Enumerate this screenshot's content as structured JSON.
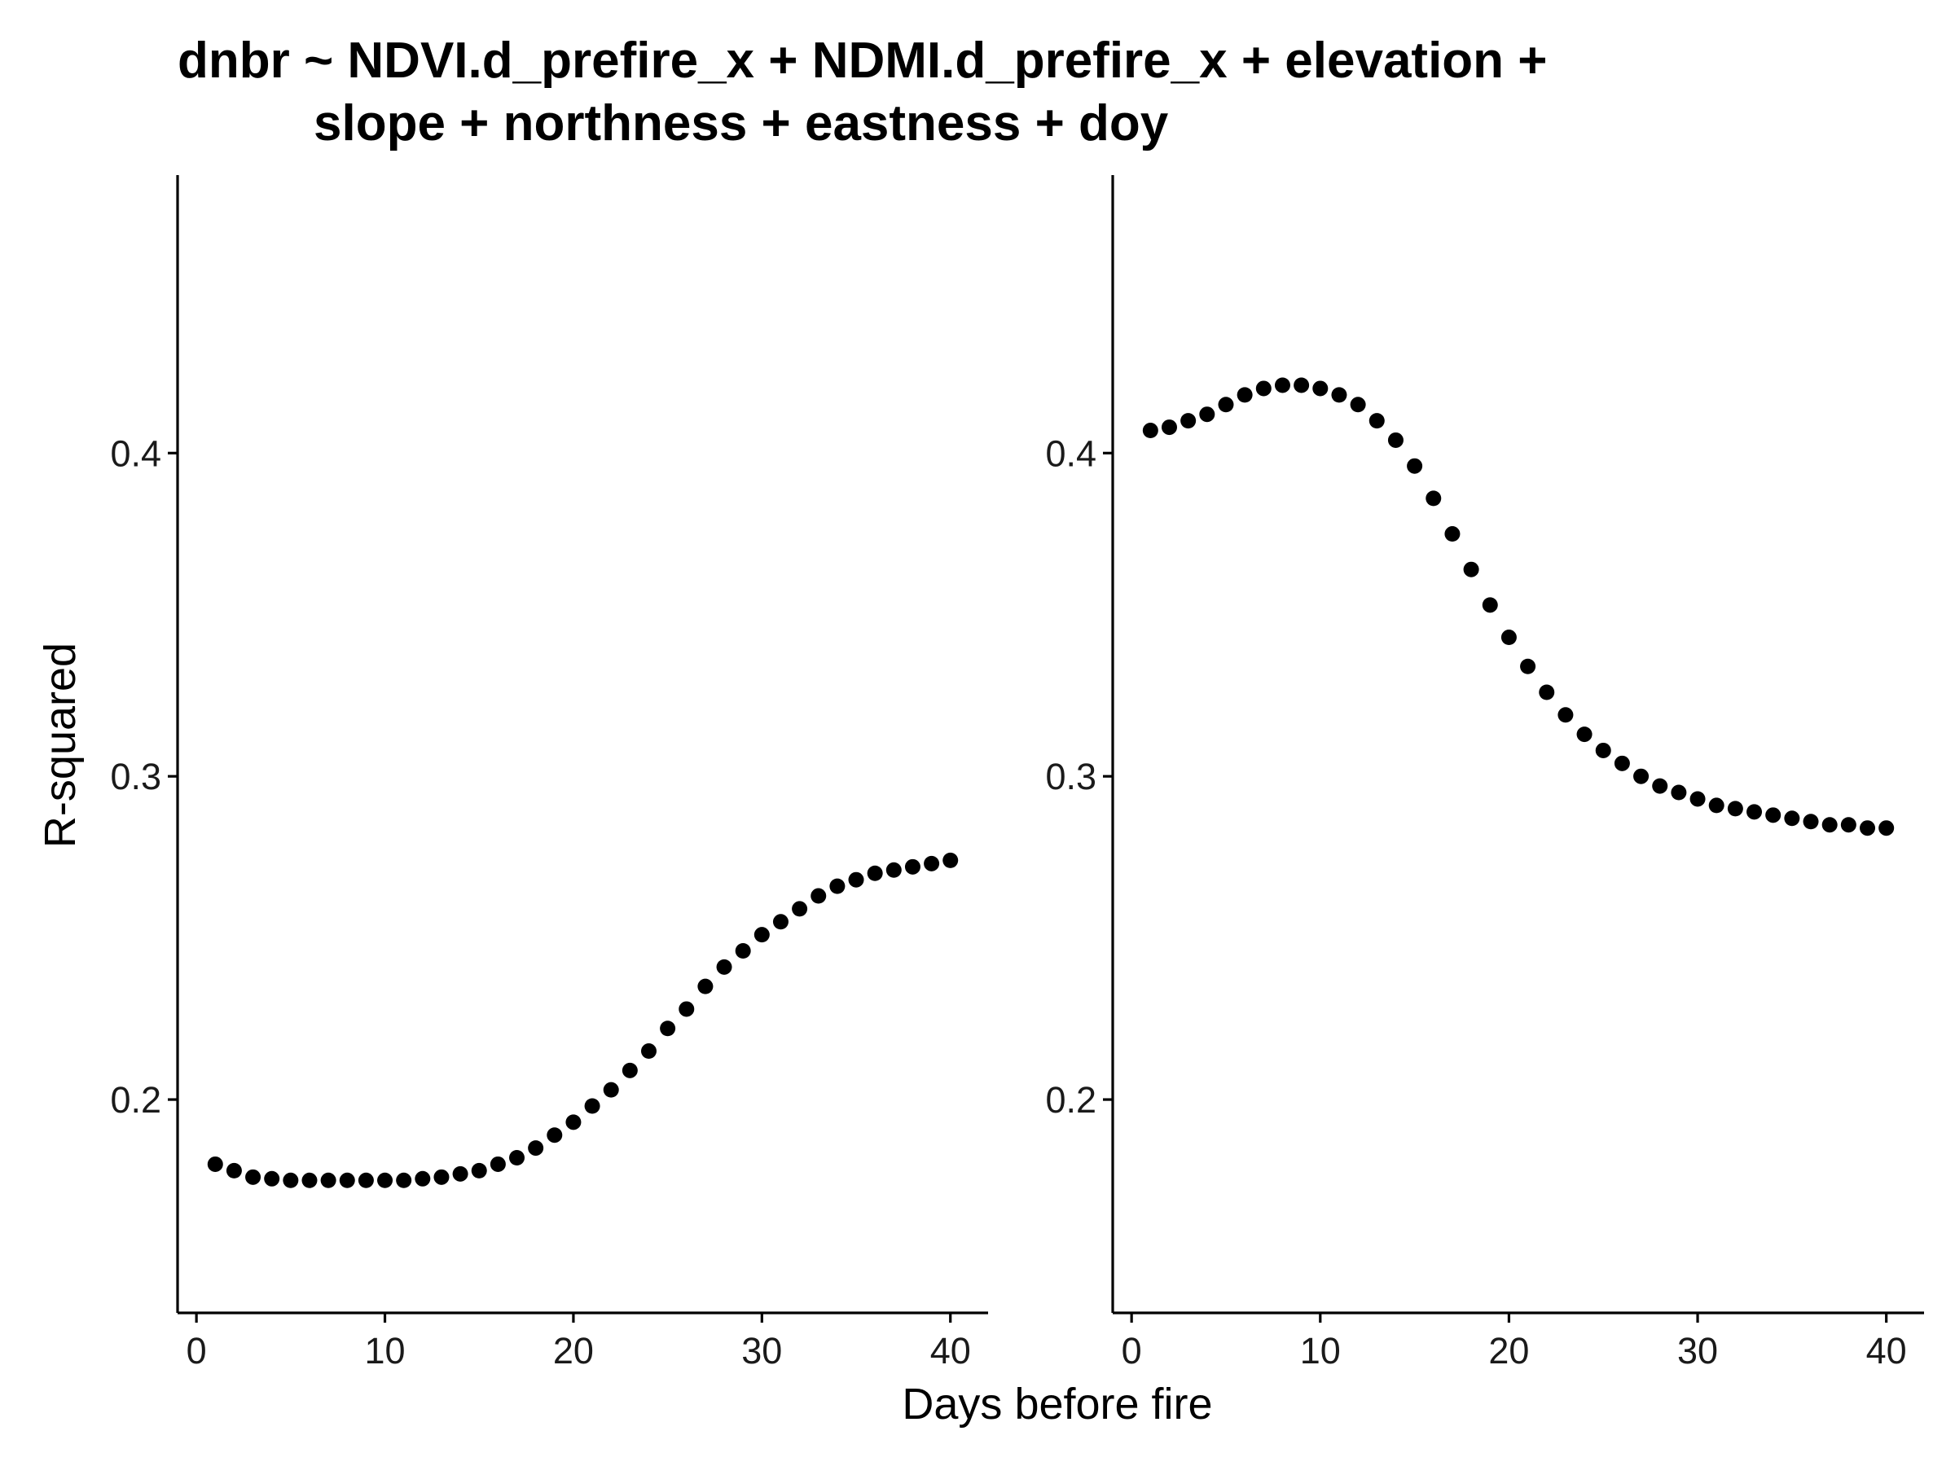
{
  "chart_data": {
    "type": "scatter",
    "title_lines": [
      "dnbr ~ NDVI.d_prefire_x + NDMI.d_prefire_x + elevation +",
      "slope + northness + eastness + doy"
    ],
    "xlabel": "Days before fire",
    "ylabel": "R-squared",
    "xlim": [
      -1,
      42
    ],
    "ylim": [
      0.134,
      0.486
    ],
    "x_ticks": [
      0,
      10,
      20,
      30,
      40
    ],
    "x_tick_labels": [
      "0",
      "10",
      "20",
      "30",
      "40"
    ],
    "y_ticks": [
      0.2,
      0.3,
      0.4
    ],
    "y_tick_labels": [
      "0.2",
      "0.3",
      "0.4"
    ],
    "grid": false,
    "legend": "none",
    "panels": [
      {
        "name": "left",
        "x": [
          1,
          2,
          3,
          4,
          5,
          6,
          7,
          8,
          9,
          10,
          11,
          12,
          13,
          14,
          15,
          16,
          17,
          18,
          19,
          20,
          21,
          22,
          23,
          24,
          25,
          26,
          27,
          28,
          29,
          30,
          31,
          32,
          33,
          34,
          35,
          36,
          37,
          38,
          39,
          40
        ],
        "y": [
          0.18,
          0.178,
          0.176,
          0.1755,
          0.175,
          0.175,
          0.175,
          0.175,
          0.175,
          0.175,
          0.175,
          0.1755,
          0.176,
          0.177,
          0.178,
          0.18,
          0.182,
          0.185,
          0.189,
          0.193,
          0.198,
          0.203,
          0.209,
          0.215,
          0.222,
          0.228,
          0.235,
          0.241,
          0.246,
          0.251,
          0.255,
          0.259,
          0.263,
          0.266,
          0.268,
          0.27,
          0.271,
          0.272,
          0.273,
          0.274
        ]
      },
      {
        "name": "right",
        "x": [
          1,
          2,
          3,
          4,
          5,
          6,
          7,
          8,
          9,
          10,
          11,
          12,
          13,
          14,
          15,
          16,
          17,
          18,
          19,
          20,
          21,
          22,
          23,
          24,
          25,
          26,
          27,
          28,
          29,
          30,
          31,
          32,
          33,
          34,
          35,
          36,
          37,
          38,
          39,
          40
        ],
        "y": [
          0.407,
          0.408,
          0.41,
          0.412,
          0.415,
          0.418,
          0.42,
          0.421,
          0.421,
          0.42,
          0.418,
          0.415,
          0.41,
          0.404,
          0.396,
          0.386,
          0.375,
          0.364,
          0.353,
          0.343,
          0.334,
          0.326,
          0.319,
          0.313,
          0.308,
          0.304,
          0.3,
          0.297,
          0.295,
          0.293,
          0.291,
          0.29,
          0.289,
          0.288,
          0.287,
          0.286,
          0.285,
          0.285,
          0.284,
          0.284
        ]
      }
    ]
  }
}
